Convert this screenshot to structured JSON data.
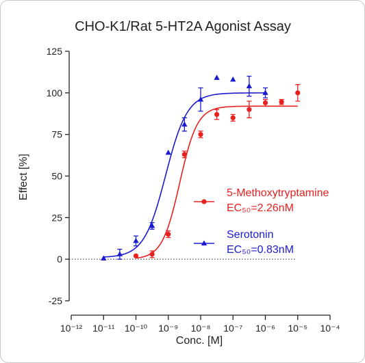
{
  "chart_data": {
    "type": "scatter",
    "title": "CHO-K1/Rat 5-HT2A Agonist Assay",
    "x_label": "Conc. [M]",
    "y_label": "Effect  [%]",
    "x_scale": "log",
    "zero_line": true,
    "xlim": [
      1e-12,
      0.0001
    ],
    "xticks": [
      {
        "value": 1e-12,
        "label": "10⁻¹²"
      },
      {
        "value": 1e-11,
        "label": "10⁻¹¹"
      },
      {
        "value": 1e-10,
        "label": "10⁻¹⁰"
      },
      {
        "value": 1e-09,
        "label": "10⁻⁹"
      },
      {
        "value": 1e-08,
        "label": "10⁻⁸"
      },
      {
        "value": 1e-07,
        "label": "10⁻⁷"
      },
      {
        "value": 1e-06,
        "label": "10⁻⁶"
      },
      {
        "value": 1e-05,
        "label": "10⁻⁵"
      },
      {
        "value": 0.0001,
        "label": "10⁻⁴"
      }
    ],
    "ylim": [
      -25,
      125
    ],
    "yticks": [
      -25,
      0,
      25,
      50,
      75,
      100,
      125
    ],
    "series": [
      {
        "name": "5-Methoxytryptamine",
        "ec50_label": "EC₅₀=2.26nM",
        "color": "#e8201e",
        "marker": "circle",
        "x": [
          1e-10,
          3.16e-10,
          1e-09,
          3.16e-09,
          1e-08,
          3.16e-08,
          1e-07,
          3.16e-07,
          1e-06,
          3.16e-06,
          1e-05
        ],
        "values": [
          2,
          3,
          15,
          63,
          75,
          87,
          85,
          90,
          94,
          94.5,
          100
        ],
        "errors": [
          null,
          2,
          2,
          2,
          2,
          3,
          2,
          5,
          2,
          1.5,
          5
        ],
        "fit": {
          "bottom": 0,
          "top": 92,
          "ec50": 2.26e-09,
          "hill": 1.6
        }
      },
      {
        "name": "Serotonin",
        "ec50_label": "EC₅₀=0.83nM",
        "color": "#1a1ad0",
        "marker": "triangle",
        "x": [
          1e-11,
          3.16e-11,
          1e-10,
          3.16e-10,
          1e-09,
          3.16e-09,
          1e-08,
          3.16e-08,
          1e-07,
          3.16e-07,
          1e-06
        ],
        "values": [
          0.5,
          3,
          11,
          20,
          64,
          81,
          96,
          109,
          108,
          104,
          100
        ],
        "errors": [
          null,
          3,
          3,
          2,
          null,
          4,
          7,
          null,
          null,
          6,
          3
        ],
        "fit": {
          "bottom": 1,
          "top": 100,
          "ec50": 8.3e-10,
          "hill": 1.3
        }
      }
    ]
  }
}
